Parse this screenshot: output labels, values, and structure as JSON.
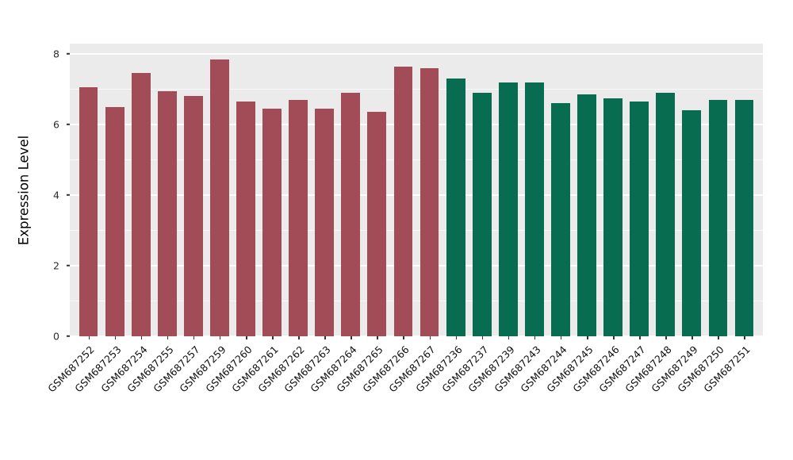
{
  "chart_data": {
    "type": "bar",
    "title": "",
    "xlabel": "",
    "ylabel": "Expression Level",
    "ylim": [
      0,
      8
    ],
    "yticks": [
      0,
      2,
      4,
      6,
      8
    ],
    "ytick_labels": [
      "0",
      "2",
      "4",
      "6",
      "8"
    ],
    "minor_yticks": [
      1,
      3,
      5,
      7
    ],
    "grid": "on",
    "legend": "none",
    "panel_bg": "#EBEBEB",
    "grid_color": "#FFFFFF",
    "series_colors": [
      "#A14C57",
      "#086C51"
    ],
    "categories": [
      "GSM687252",
      "GSM687253",
      "GSM687254",
      "GSM687255",
      "GSM687257",
      "GSM687259",
      "GSM687260",
      "GSM687261",
      "GSM687262",
      "GSM687263",
      "GSM687264",
      "GSM687265",
      "GSM687266",
      "GSM687267",
      "GSM687236",
      "GSM687237",
      "GSM687239",
      "GSM687243",
      "GSM687244",
      "GSM687245",
      "GSM687246",
      "GSM687247",
      "GSM687248",
      "GSM687249",
      "GSM687250",
      "GSM687251"
    ],
    "values": [
      7.05,
      6.5,
      7.45,
      6.95,
      6.8,
      7.85,
      6.65,
      6.45,
      6.7,
      6.45,
      6.9,
      6.35,
      7.65,
      7.6,
      7.3,
      6.9,
      7.2,
      7.2,
      6.6,
      6.85,
      6.75,
      6.65,
      6.9,
      6.4,
      6.7,
      6.7
    ],
    "group_index": [
      0,
      0,
      0,
      0,
      0,
      0,
      0,
      0,
      0,
      0,
      0,
      0,
      0,
      0,
      1,
      1,
      1,
      1,
      1,
      1,
      1,
      1,
      1,
      1,
      1,
      1
    ]
  }
}
